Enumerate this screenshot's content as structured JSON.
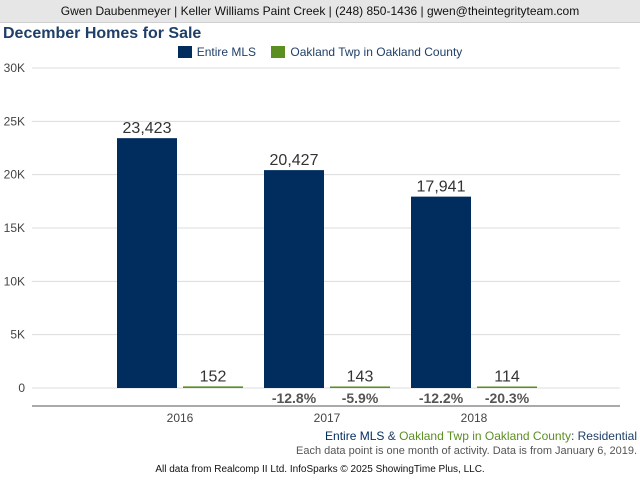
{
  "header": {
    "contact": "Gwen Daubenmeyer | Keller Williams Paint Creek | (248) 850-1436 | gwen@theintegrityteam.com"
  },
  "legend": {
    "items": [
      {
        "label": "Entire MLS",
        "color": "#012d5e"
      },
      {
        "label": "Oakland Twp in Oakland County",
        "color": "#5b8f22"
      }
    ]
  },
  "chart_data": {
    "type": "bar",
    "title": "December Homes for Sale",
    "categories": [
      "2016",
      "2017",
      "2018"
    ],
    "series": [
      {
        "name": "Entire MLS",
        "values": [
          23423,
          20427,
          17941
        ],
        "labels": [
          "23,423",
          "20,427",
          "17,941"
        ],
        "change": [
          "",
          "-12.8%",
          "-12.2%"
        ],
        "color": "#012d5e"
      },
      {
        "name": "Oakland Twp in Oakland County",
        "values": [
          152,
          143,
          114
        ],
        "labels": [
          "152",
          "143",
          "114"
        ],
        "change": [
          "",
          "-5.9%",
          "-20.3%"
        ],
        "color": "#5b8f22"
      }
    ],
    "yticks": [
      0,
      5000,
      10000,
      15000,
      20000,
      25000,
      30000
    ],
    "ytick_labels": [
      "0",
      "5K",
      "10K",
      "15K",
      "20K",
      "25K",
      "30K"
    ],
    "ylim": [
      0,
      30000
    ],
    "grid": true,
    "legend_position": "top-center"
  },
  "footer": {
    "series_part1": "Entire MLS",
    "amp": " & ",
    "series_part2": "Oakland Twp in Oakland County",
    "suffix": ": Residential",
    "note": "Each data point is one month of activity. Data is from January 6, 2019.",
    "credit": "All data from Realcomp II Ltd. InfoSparks © 2025 ShowingTime Plus, LLC."
  }
}
